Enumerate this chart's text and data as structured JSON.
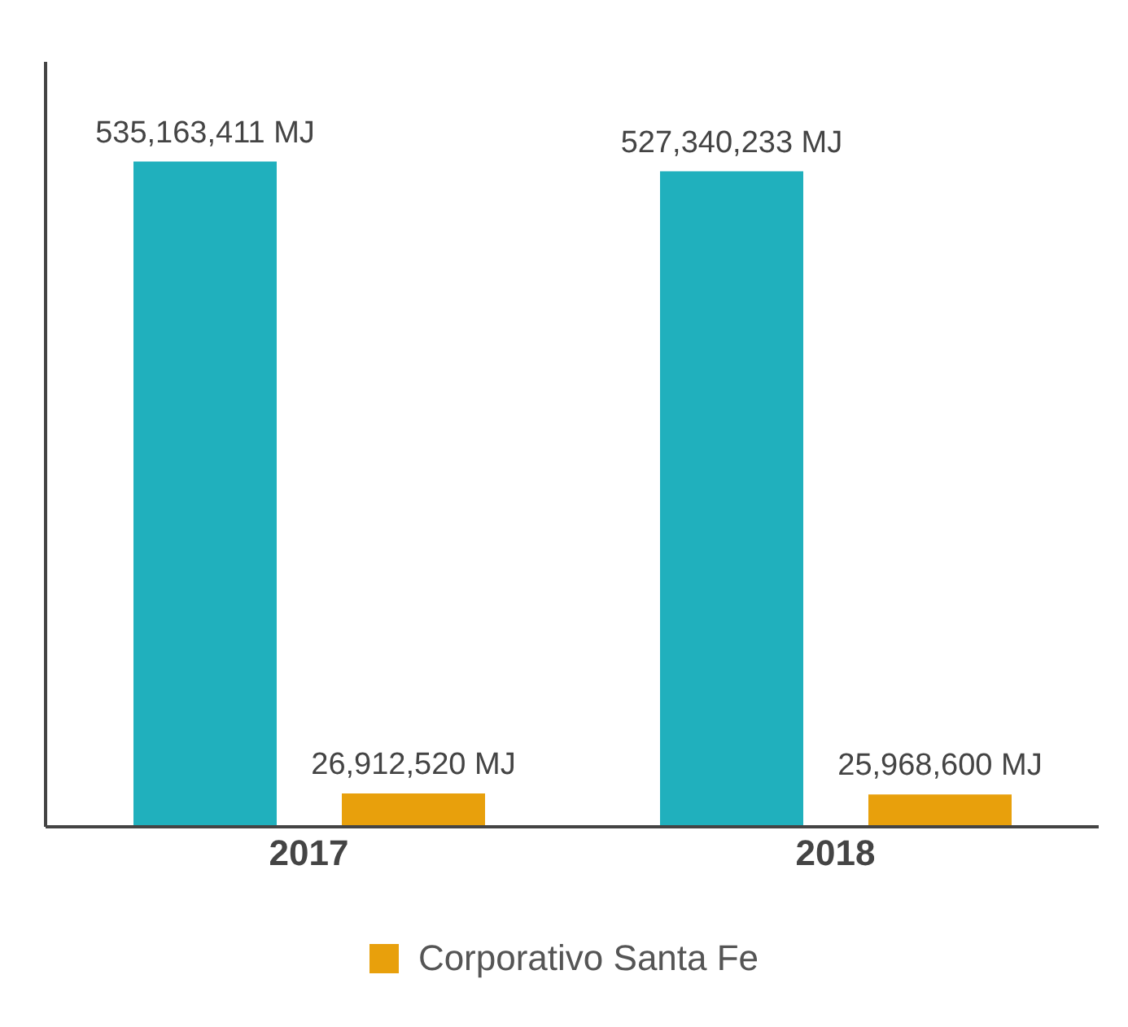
{
  "chart_data": {
    "type": "bar",
    "categories": [
      "2017",
      "2018"
    ],
    "series": [
      {
        "color": "#20b0bd",
        "values": [
          535163411,
          527340233
        ],
        "value_labels": [
          "535,163,411 MJ",
          "527,340,233 MJ"
        ]
      },
      {
        "name": "Corporativo Santa Fe",
        "color": "#e8a00c",
        "values": [
          26912520,
          25968600
        ],
        "value_labels": [
          "26,912,520 MJ",
          "25,968,600 MJ"
        ]
      }
    ],
    "tick_labels": "x",
    "legend": "bottom",
    "grid": false
  }
}
